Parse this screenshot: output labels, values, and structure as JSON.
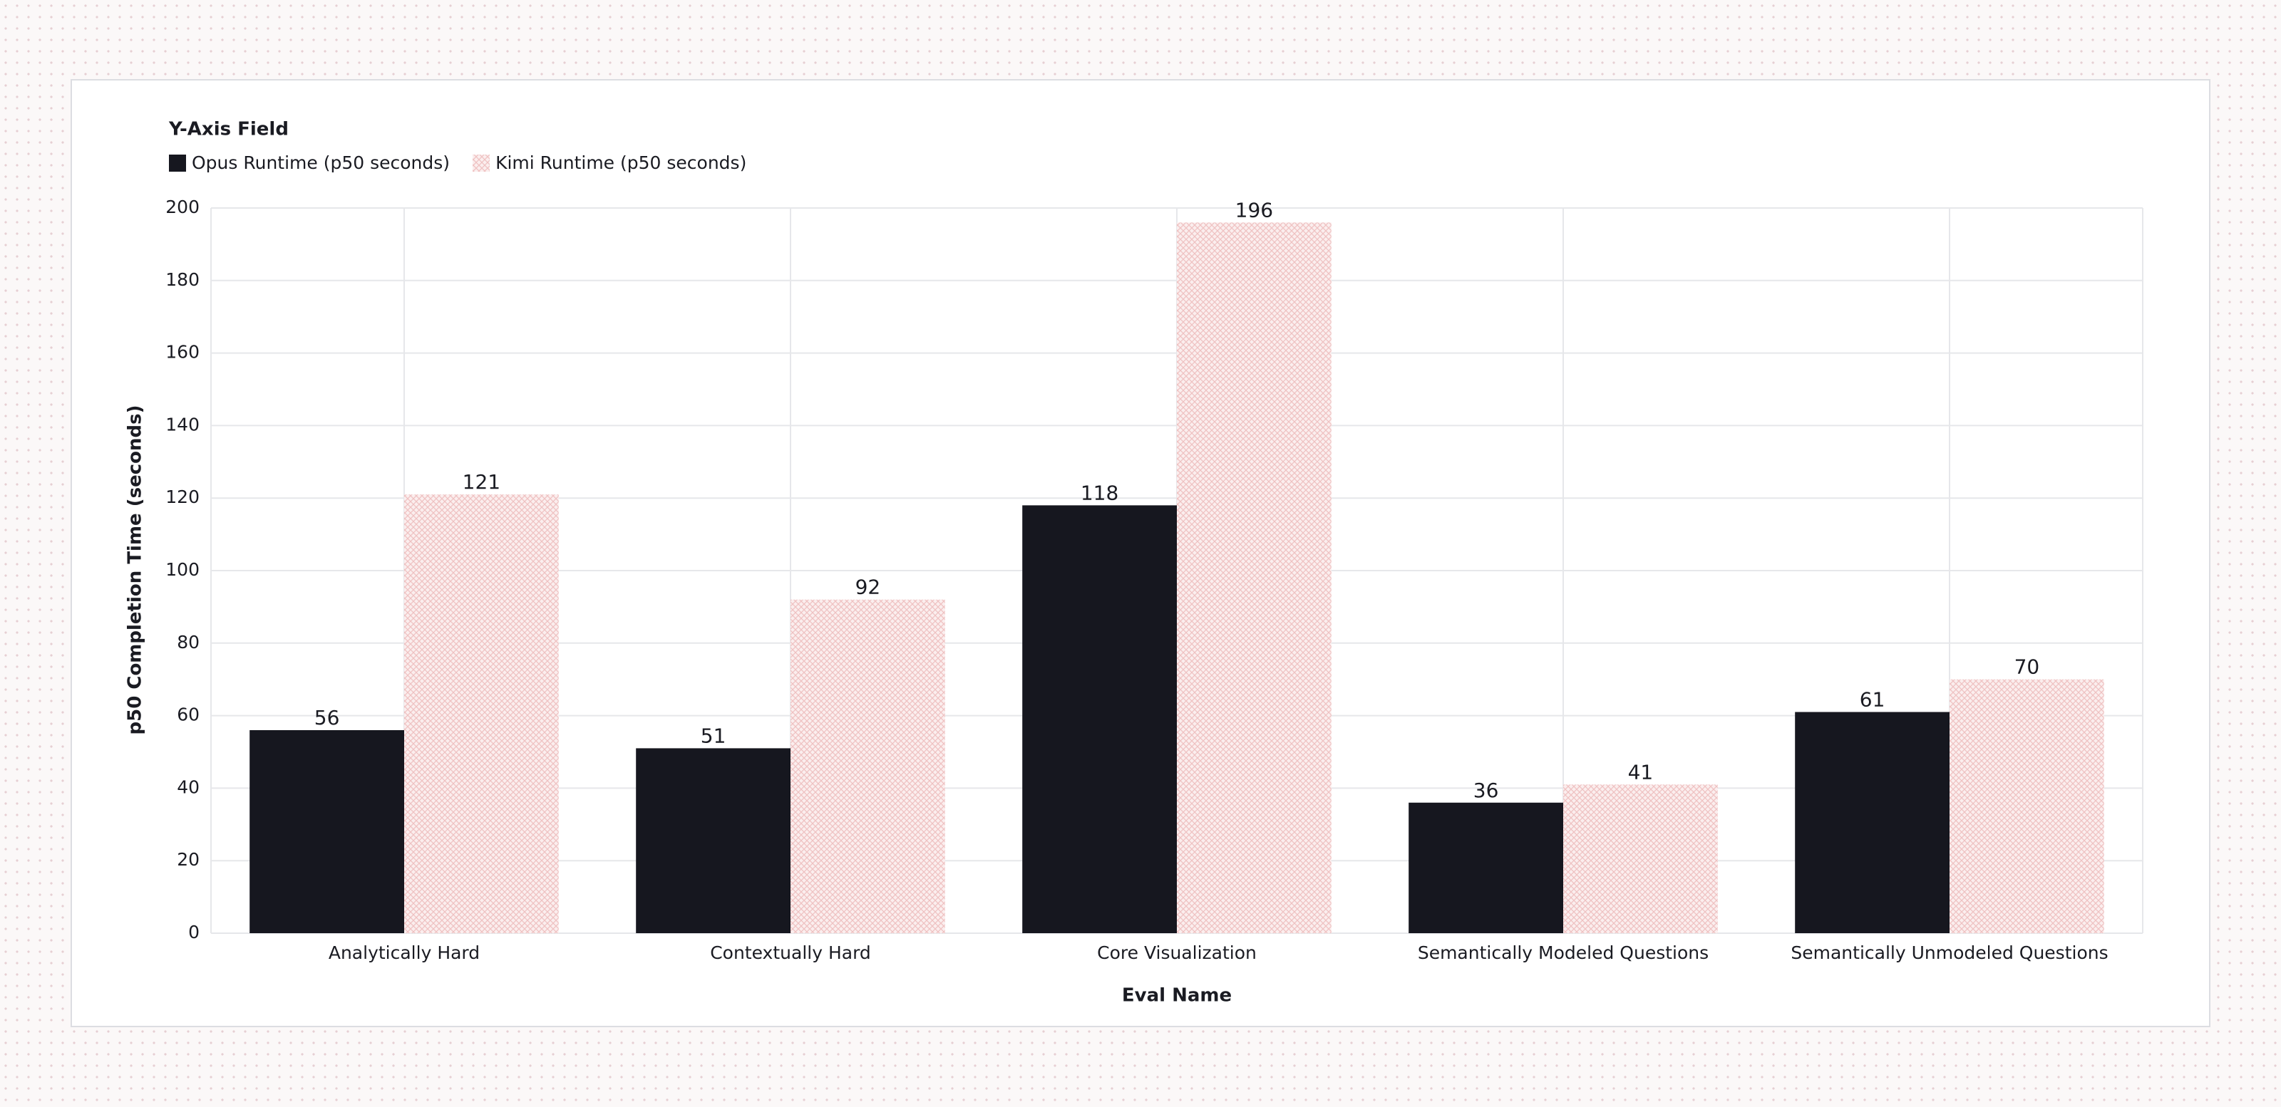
{
  "chart_data": {
    "type": "bar",
    "legend_title": "Y-Axis Field",
    "x_label": "Eval Name",
    "y_label": "p50 Completion Time (seconds)",
    "categories": [
      "Analytically Hard",
      "Contextually Hard",
      "Core Visualization",
      "Semantically Modeled Questions",
      "Semantically Unmodeled Questions"
    ],
    "series": [
      {
        "name": "Opus Runtime (p50 seconds)",
        "color": "#16171f",
        "values": [
          56,
          51,
          118,
          36,
          61
        ]
      },
      {
        "name": "Kimi Runtime (p50 seconds)",
        "color": "#efc2c2",
        "pattern": "crosshatch",
        "values": [
          121,
          92,
          196,
          41,
          70
        ]
      }
    ],
    "ylim": [
      0,
      200
    ],
    "yticks": [
      0,
      20,
      40,
      60,
      80,
      100,
      120,
      140,
      160,
      180,
      200
    ],
    "grid": true,
    "legend": "top-left"
  }
}
